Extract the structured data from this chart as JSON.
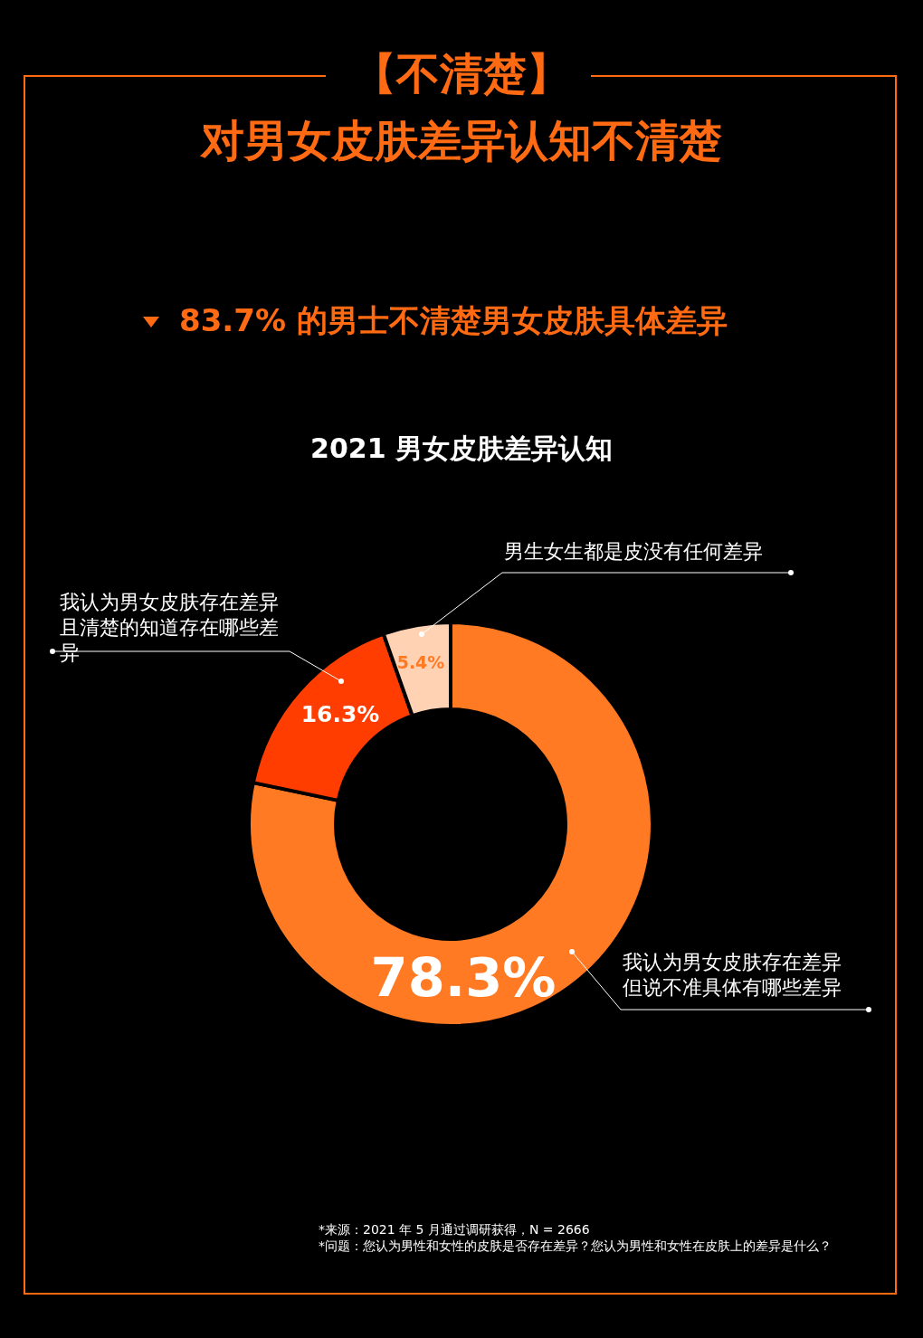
{
  "chart_data": {
    "type": "donut",
    "title": "2021 男女皮肤差异认知",
    "categories": [
      "我认为男女皮肤存在差异但说不准具体有哪些差异",
      "我认为男女皮肤存在差异且清楚的知道存在哪些差异",
      "男生女生都是皮没有任何差异"
    ],
    "values": [
      78.3,
      16.3,
      5.4
    ],
    "colors": [
      "#ff7a22",
      "#ff3d00",
      "#ffd2b4"
    ],
    "value_labels": [
      "78.3%",
      "16.3%",
      "5.4%"
    ],
    "annotations": [
      "【不清楚】",
      "对男女皮肤差异认知不清楚",
      "83.7% 的男士不清楚男女皮肤具体差异",
      "*来源：2021 年 5 月通过调研获得，N = 2666",
      "*问题：您认为男性和女性的皮肤是否存在差异？您认为男性和女性在皮肤上的差异是什么？"
    ]
  }
}
